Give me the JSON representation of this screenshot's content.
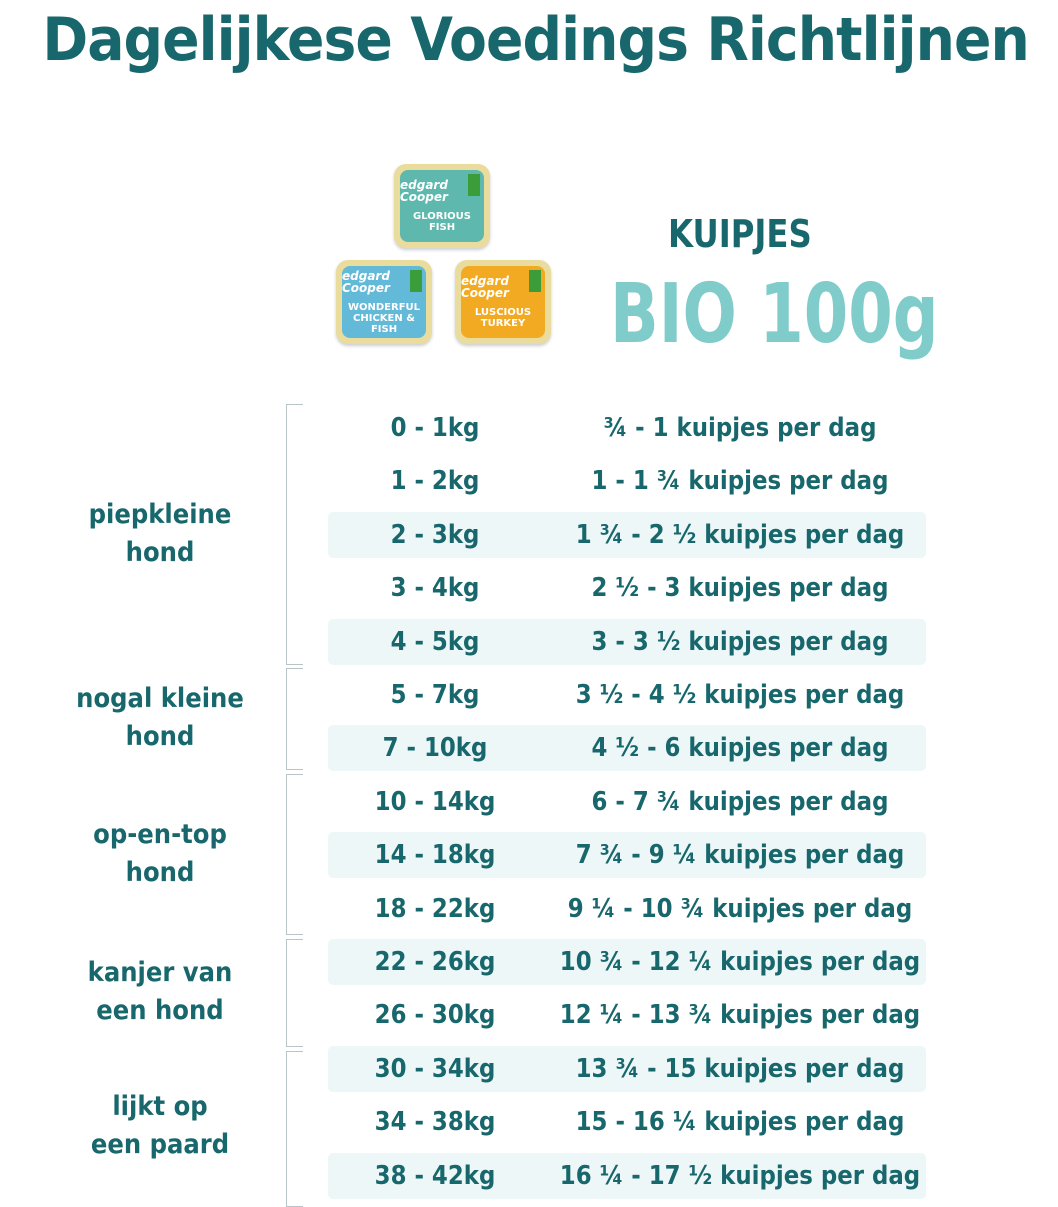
{
  "title": "Dagelijkese Voedings Richtlijnen",
  "product": {
    "line1": "KUIPJES",
    "line2": "BIO 100g",
    "trays": [
      {
        "brand": "edgard Cooper",
        "name": "GLORIOUS FISH",
        "color": "#5fb8ad"
      },
      {
        "brand": "edgard Cooper",
        "name": "WONDERFUL CHICKEN & FISH",
        "color": "#63b9d8"
      },
      {
        "brand": "edgard Cooper",
        "name": "LUSCIOUS TURKEY",
        "color": "#f1aa22"
      }
    ]
  },
  "colors": {
    "text": "#17676c",
    "accent": "#80cccb",
    "row_highlight": "#eef7f8"
  },
  "groups": [
    {
      "label": "piepkleine\nhond"
    },
    {
      "label": "nogal kleine\nhond"
    },
    {
      "label": "op-en-top\nhond"
    },
    {
      "label": "kanjer van\neen hond"
    },
    {
      "label": "lijkt op\neen paard"
    }
  ],
  "rows": [
    {
      "weight": "0 - 1kg",
      "portion": "¾ - 1 kuipjes per dag"
    },
    {
      "weight": "1 - 2kg",
      "portion": "1 - 1 ¾ kuipjes per dag"
    },
    {
      "weight": "2 - 3kg",
      "portion": "1 ¾ - 2 ½ kuipjes per dag"
    },
    {
      "weight": "3 - 4kg",
      "portion": "2 ½ - 3 kuipjes per dag"
    },
    {
      "weight": "4 - 5kg",
      "portion": "3 - 3 ½ kuipjes per dag"
    },
    {
      "weight": "5 - 7kg",
      "portion": "3 ½ - 4 ½ kuipjes per dag"
    },
    {
      "weight": "7 - 10kg",
      "portion": "4 ½ - 6 kuipjes per dag"
    },
    {
      "weight": "10 - 14kg",
      "portion": "6 - 7 ¾ kuipjes per dag"
    },
    {
      "weight": "14 - 18kg",
      "portion": "7 ¾ - 9 ¼ kuipjes per dag"
    },
    {
      "weight": "18 - 22kg",
      "portion": "9 ¼ - 10 ¾ kuipjes per dag"
    },
    {
      "weight": "22 - 26kg",
      "portion": "10 ¾ - 12 ¼ kuipjes per dag"
    },
    {
      "weight": "26 - 30kg",
      "portion": "12 ¼ - 13 ¾ kuipjes per dag"
    },
    {
      "weight": "30 - 34kg",
      "portion": "13 ¾ - 15 kuipjes per dag"
    },
    {
      "weight": "34 - 38kg",
      "portion": "15 - 16 ¼ kuipjes per dag"
    },
    {
      "weight": "38 - 42kg",
      "portion": "16 ¼ - 17 ½ kuipjes per dag"
    }
  ]
}
